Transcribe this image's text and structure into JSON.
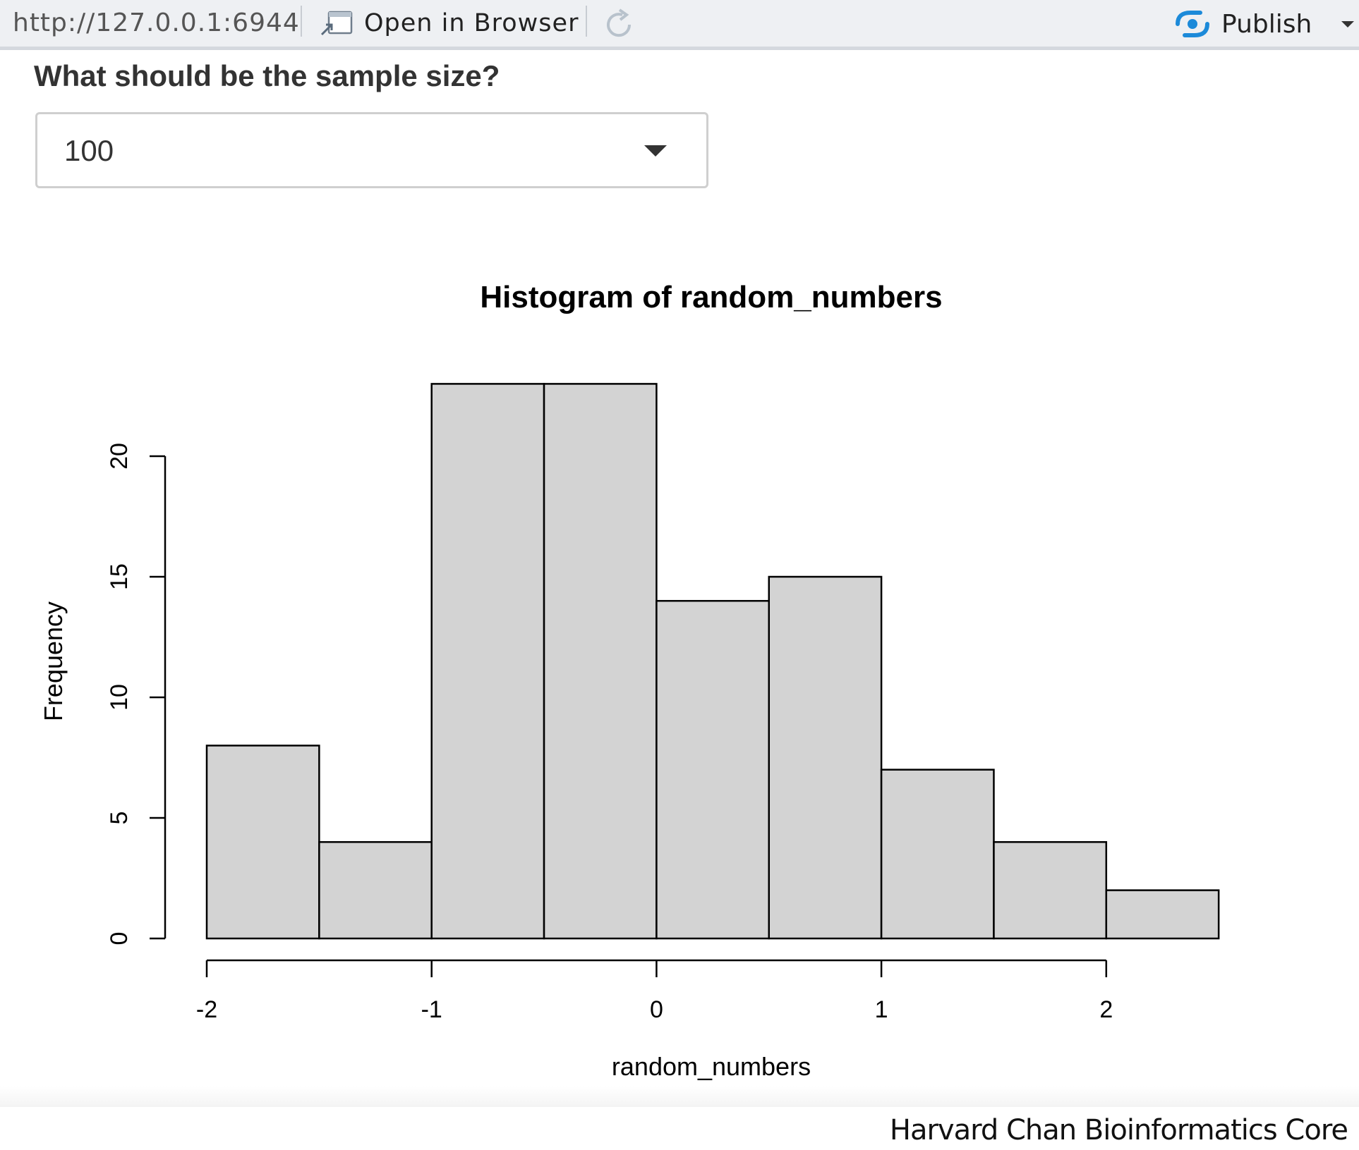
{
  "toolbar": {
    "url": "http://127.0.0.1:6944",
    "open_label": "Open in Browser",
    "publish_label": "Publish",
    "icons": [
      "open-in-browser-icon",
      "refresh-icon",
      "publish-icon",
      "chevron-down-icon"
    ],
    "publish_color": "#1c8ad9"
  },
  "input": {
    "question": "What should be the sample size?",
    "selected_value": "100"
  },
  "chart_data": {
    "type": "bar",
    "subtype": "histogram",
    "title": "Histogram of random_numbers",
    "xlabel": "random_numbers",
    "ylabel": "Frequency",
    "bin_edges": [
      -2,
      -1.5,
      -1,
      -0.5,
      0,
      0.5,
      1,
      1.5,
      2,
      2.5
    ],
    "values": [
      8,
      4,
      23,
      23,
      14,
      15,
      7,
      4,
      2
    ],
    "xlim": [
      -2,
      2.5
    ],
    "ylim": [
      0,
      23
    ],
    "x_ticks": [
      "-2",
      "-1",
      "0",
      "1",
      "2"
    ],
    "y_ticks": [
      "0",
      "5",
      "10",
      "15",
      "20"
    ],
    "bar_fill": "#d3d3d3",
    "bar_stroke": "#000000",
    "grid": false,
    "legend": "none"
  },
  "footer": {
    "credit": "Harvard Chan Bioinformatics Core"
  }
}
